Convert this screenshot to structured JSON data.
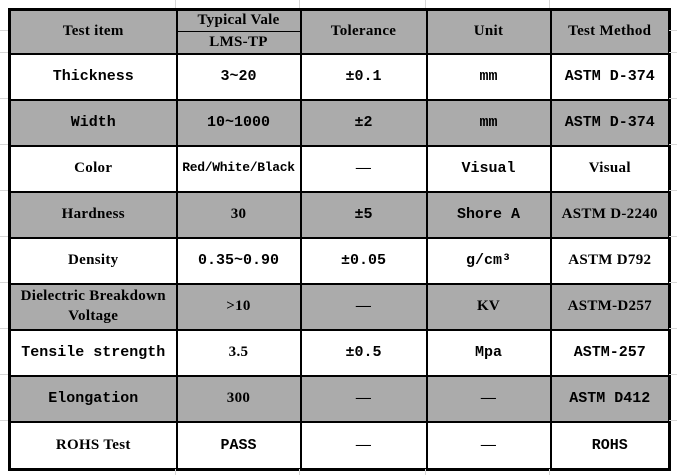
{
  "table": {
    "header": {
      "test_item": "Test item",
      "typical_value_top": "Typical Vale",
      "typical_value_sub": "LMS-TP",
      "tolerance": "Tolerance",
      "unit": "Unit",
      "test_method": "Test Method"
    },
    "rows": [
      {
        "item": "Thickness",
        "value": "3~20",
        "tolerance": "±0.1",
        "unit": "mm",
        "method": "ASTM D-374"
      },
      {
        "item": "Width",
        "value": "10~1000",
        "tolerance": "±2",
        "unit": "mm",
        "method": "ASTM D-374"
      },
      {
        "item": "Color",
        "value": "Red/White/Black",
        "tolerance": "—",
        "unit": "Visual",
        "method": "Visual"
      },
      {
        "item": "Hardness",
        "value": "30",
        "tolerance": "±5",
        "unit": "Shore A",
        "method": "ASTM D-2240"
      },
      {
        "item": "Density",
        "value": "0.35~0.90",
        "tolerance": "±0.05",
        "unit": "g/cm³",
        "method": "ASTM D792"
      },
      {
        "item": "Dielectric Breakdown Voltage",
        "value": ">10",
        "tolerance": "—",
        "unit": "KV",
        "method": "ASTM-D257"
      },
      {
        "item": "Tensile strength",
        "value": "3.5",
        "tolerance": "±0.5",
        "unit": "Mpa",
        "method": "ASTM-257"
      },
      {
        "item": "Elongation",
        "value": "300",
        "tolerance": "—",
        "unit": "—",
        "method": "ASTM D412"
      },
      {
        "item": "ROHS Test",
        "value": "PASS",
        "tolerance": "—",
        "unit": "—",
        "method": "ROHS"
      }
    ],
    "colors": {
      "header_fill": "#ababab",
      "alt_row_fill": "#ababab",
      "row_fill": "#ffffff",
      "border": "#000000"
    }
  }
}
